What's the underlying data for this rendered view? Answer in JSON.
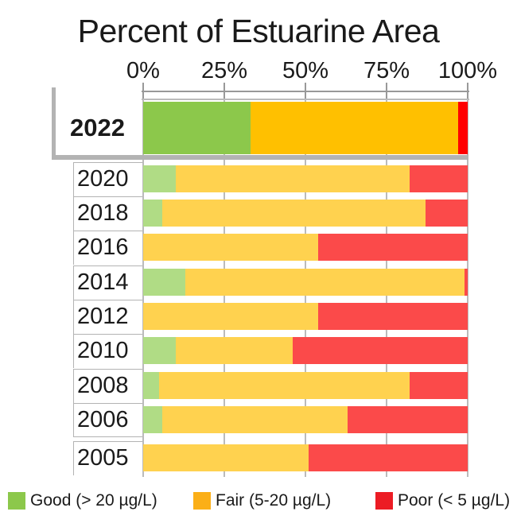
{
  "chart_data": {
    "type": "bar",
    "orientation": "horizontal",
    "stacked": true,
    "title": "Percent of Estuarine Area",
    "xlabel": "",
    "ylabel": "",
    "x_ticks": [
      "0%",
      "25%",
      "50%",
      "75%",
      "100%"
    ],
    "xlim": [
      0,
      100
    ],
    "grid": true,
    "legend_position": "bottom",
    "highlighted_category": "2022",
    "categories": [
      "2022",
      "2020",
      "2018",
      "2016",
      "2014",
      "2012",
      "2010",
      "2008",
      "2006",
      "2005"
    ],
    "series": [
      {
        "name": "Good (> 20 µg/L)",
        "key": "good",
        "values": [
          33,
          10,
          6,
          0,
          13,
          0,
          10,
          5,
          6,
          0
        ]
      },
      {
        "name": "Fair (5-20 µg/L)",
        "key": "fair",
        "values": [
          64,
          72,
          81,
          54,
          86,
          54,
          36,
          77,
          57,
          51
        ]
      },
      {
        "name": "Poor (< 5 µg/L)",
        "key": "poor",
        "values": [
          3,
          18,
          13,
          46,
          1,
          46,
          54,
          18,
          37,
          49
        ]
      }
    ]
  },
  "colors": {
    "highlight": {
      "good": "#8CC84B",
      "fair": "#FFC000",
      "poor": "#FF0000"
    },
    "normal": {
      "good": "#B0DC85",
      "fair": "#FFD24F",
      "poor": "#FB4A4A"
    },
    "legend": {
      "good": "#8CC84B",
      "fair": "#FBAF17",
      "poor": "#EC1C24"
    },
    "grid": "#BBBBBB",
    "axis": "#999999",
    "bracket": "#B3B3B3",
    "cell_border": "#B3B3B3",
    "text": "#1A1A1A"
  }
}
